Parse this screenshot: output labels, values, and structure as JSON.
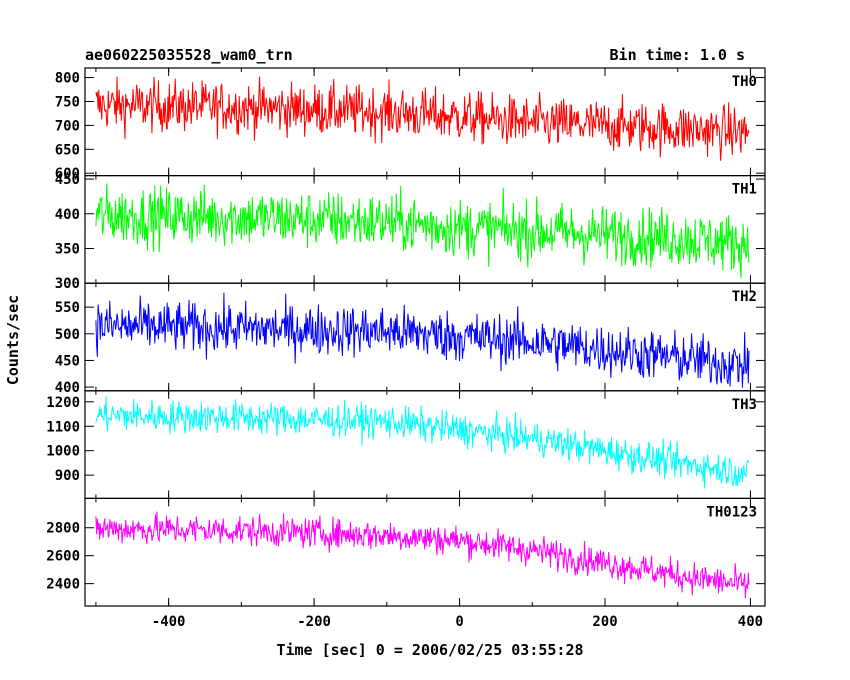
{
  "chart_data": {
    "type": "line",
    "title": "ae060225035528_wam0_trn",
    "subtitle": "Bin time: 1.0 s",
    "xlabel": "Time [sec] 0 = 2006/02/25 03:55:28",
    "ylabel": "Counts/sec",
    "xlim": [
      -515,
      420
    ],
    "x_ticks": [
      -400,
      -200,
      0,
      200,
      400
    ],
    "time_range": [
      -500,
      398
    ],
    "panels": [
      {
        "name": "TH0",
        "color": "#ff0000",
        "ylim": [
          595,
          820
        ],
        "y_ticks": [
          600,
          650,
          700,
          750,
          800
        ],
        "trend": [
          [
            -500,
            742
          ],
          [
            -300,
            738
          ],
          [
            -100,
            728
          ],
          [
            0,
            718
          ],
          [
            100,
            705
          ],
          [
            200,
            700
          ],
          [
            300,
            693
          ],
          [
            398,
            685
          ]
        ],
        "noise": 27
      },
      {
        "name": "TH1",
        "color": "#00ff00",
        "ylim": [
          300,
          455
        ],
        "y_ticks": [
          300,
          350,
          400,
          450
        ],
        "trend": [
          [
            -500,
            398
          ],
          [
            -300,
            395
          ],
          [
            -100,
            388
          ],
          [
            0,
            380
          ],
          [
            100,
            375
          ],
          [
            200,
            370
          ],
          [
            300,
            365
          ],
          [
            398,
            356
          ]
        ],
        "noise": 21
      },
      {
        "name": "TH2",
        "color": "#0000ff",
        "ylim": [
          393,
          595
        ],
        "y_ticks": [
          400,
          450,
          500,
          550
        ],
        "trend": [
          [
            -500,
            515
          ],
          [
            -300,
            510
          ],
          [
            -100,
            505
          ],
          [
            0,
            495
          ],
          [
            100,
            485
          ],
          [
            200,
            470
          ],
          [
            300,
            455
          ],
          [
            398,
            440
          ]
        ],
        "noise": 24
      },
      {
        "name": "TH3",
        "color": "#00ffff",
        "ylim": [
          805,
          1245
        ],
        "y_ticks": [
          900,
          1000,
          1100,
          1200
        ],
        "trend": [
          [
            -500,
            1145
          ],
          [
            -300,
            1135
          ],
          [
            -100,
            1120
          ],
          [
            0,
            1085
          ],
          [
            100,
            1050
          ],
          [
            200,
            1000
          ],
          [
            300,
            950
          ],
          [
            398,
            910
          ]
        ],
        "noise": 34
      },
      {
        "name": "TH0123",
        "color": "#ff00ff",
        "ylim": [
          2240,
          3010
        ],
        "y_ticks": [
          2400,
          2600,
          2800
        ],
        "trend": [
          [
            -500,
            2795
          ],
          [
            -300,
            2780
          ],
          [
            -100,
            2745
          ],
          [
            0,
            2710
          ],
          [
            100,
            2640
          ],
          [
            200,
            2550
          ],
          [
            300,
            2460
          ],
          [
            398,
            2385
          ]
        ],
        "noise": 55
      }
    ]
  }
}
